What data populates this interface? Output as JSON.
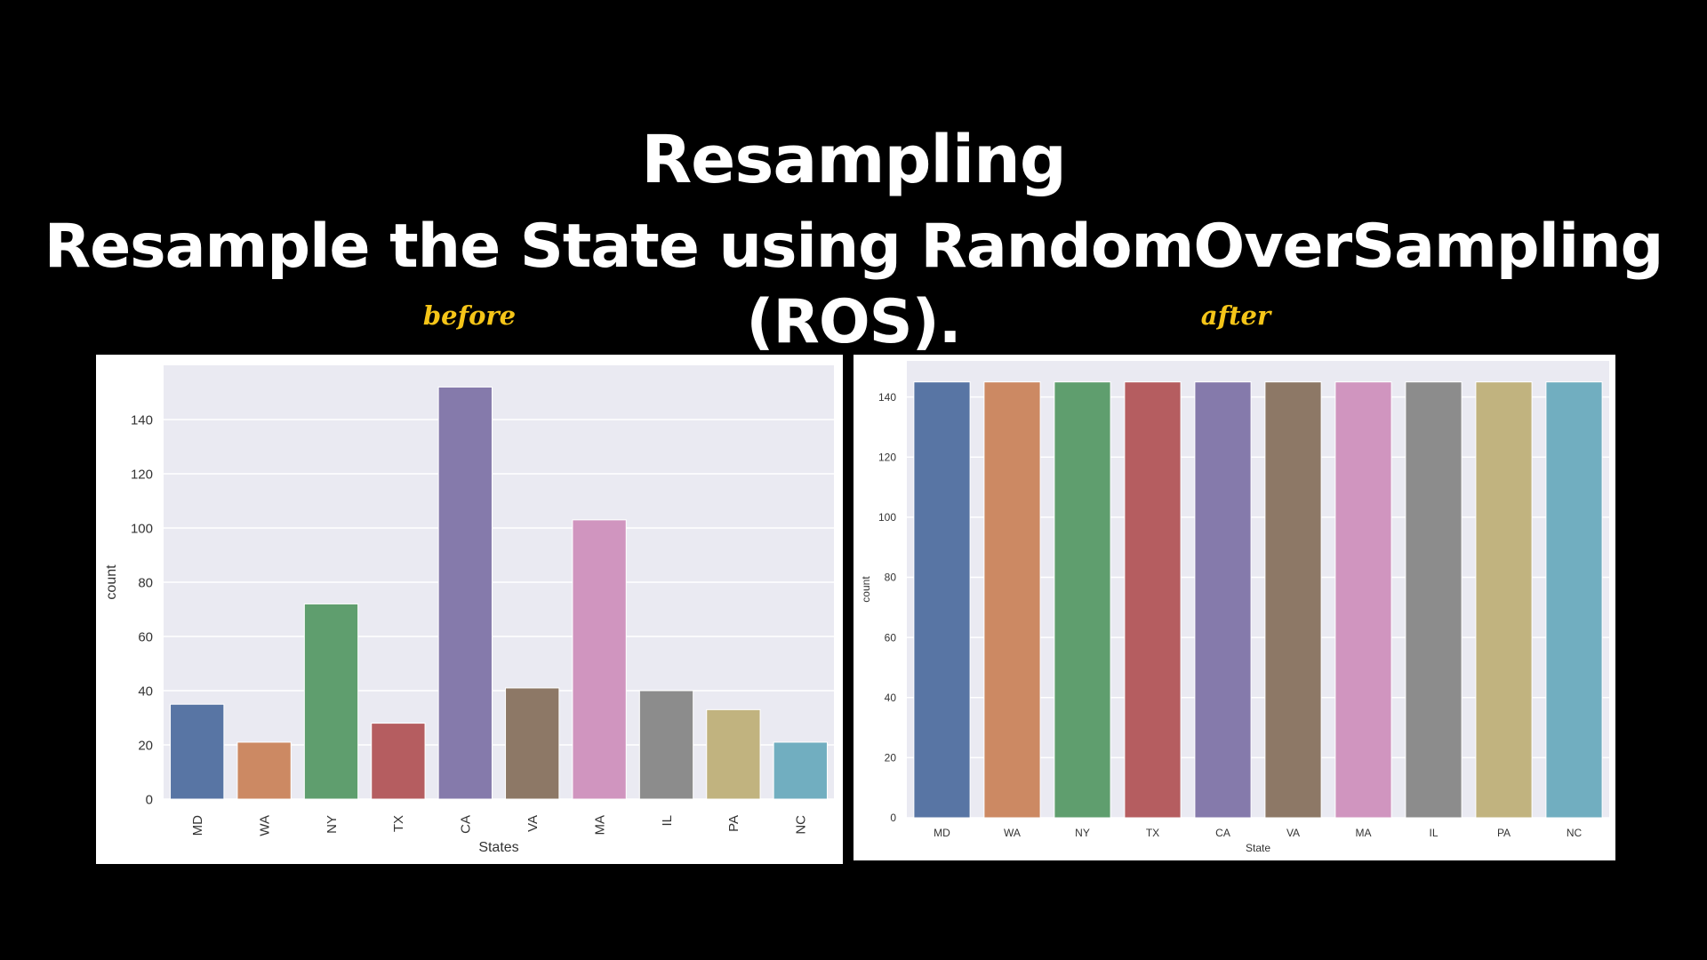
{
  "slide": {
    "title_line1": "Resampling",
    "title_line2": "Resample the State using RandomOverSampling (ROS).",
    "label_before": "before",
    "label_after": "after"
  },
  "colors": [
    "#5875a4",
    "#cc8963",
    "#5f9e6e",
    "#b55d60",
    "#857aab",
    "#8d7866",
    "#d095bf",
    "#8c8c8c",
    "#c1b37f",
    "#71aec0"
  ],
  "chart_data": [
    {
      "type": "bar",
      "categories": [
        "MD",
        "WA",
        "NY",
        "TX",
        "CA",
        "VA",
        "MA",
        "IL",
        "PA",
        "NC"
      ],
      "values": [
        35,
        21,
        72,
        28,
        152,
        41,
        103,
        40,
        33,
        21
      ],
      "xlabel": "States",
      "ylabel": "count",
      "ylim": [
        0,
        160
      ],
      "yticks": [
        0,
        20,
        40,
        60,
        80,
        100,
        120,
        140
      ],
      "tick_rotation": "vertical",
      "grid": true
    },
    {
      "type": "bar",
      "categories": [
        "MD",
        "WA",
        "NY",
        "TX",
        "CA",
        "VA",
        "MA",
        "IL",
        "PA",
        "NC"
      ],
      "values": [
        145,
        145,
        145,
        145,
        145,
        145,
        145,
        145,
        145,
        145
      ],
      "xlabel": "State",
      "ylabel": "count",
      "ylim": [
        0,
        152
      ],
      "yticks": [
        0,
        20,
        40,
        60,
        80,
        100,
        120,
        140
      ],
      "tick_rotation": "horizontal",
      "grid": true
    }
  ]
}
